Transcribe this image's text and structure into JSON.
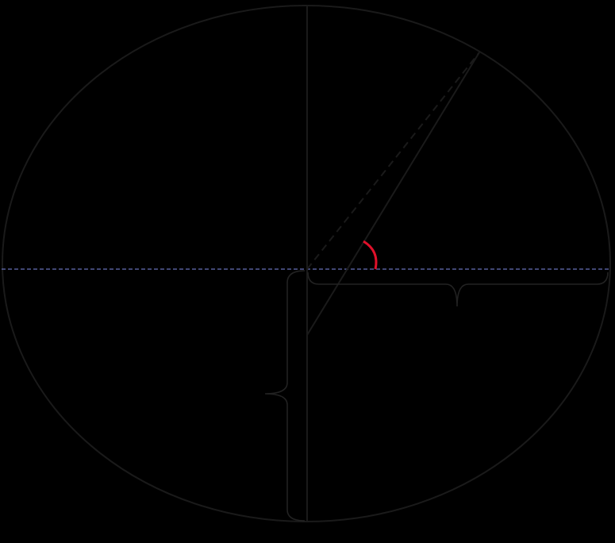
{
  "diagram": {
    "background": "#000000",
    "stroke_color": "#1a1a1a",
    "equator_color": "#6670b8",
    "angle_color": "#e0102a",
    "brace_color": "#222222"
  }
}
